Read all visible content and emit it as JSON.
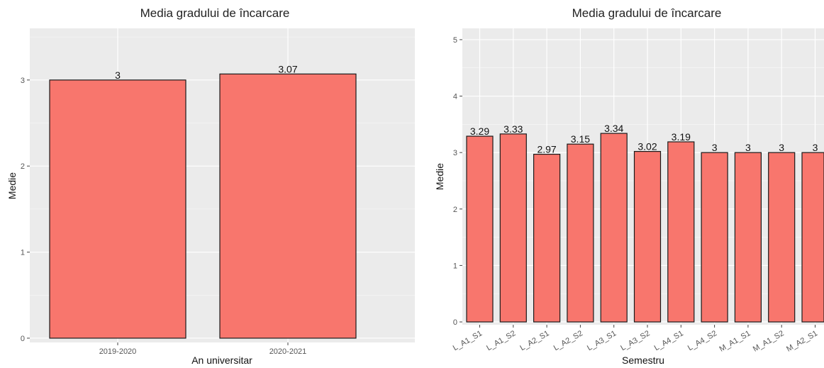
{
  "colors": {
    "panel_bg": "#ebebeb",
    "grid": "#ffffff",
    "bar_fill": "#f8766d",
    "bar_stroke": "#1a1a1a"
  },
  "chart_data": [
    {
      "type": "bar",
      "title": "Media gradului de încarcare",
      "xlabel": "An universitar",
      "ylabel": "Medie",
      "categories": [
        "2019-2020",
        "2020-2021"
      ],
      "values": [
        3,
        3.07
      ],
      "value_labels": [
        "3",
        "3.07"
      ],
      "yticks": [
        0,
        1,
        2,
        3
      ],
      "ylim": [
        -0.05,
        3.6
      ],
      "grid": true,
      "legend": "none"
    },
    {
      "type": "bar",
      "title": "Media gradului de încarcare",
      "xlabel": "Semestru",
      "ylabel": "Medie",
      "categories": [
        "L_A1_S1",
        "L_A1_S2",
        "L_A2_S1",
        "L_A2_S2",
        "L_A3_S1",
        "L_A3_S2",
        "L_A4_S1",
        "L_A4_S2",
        "M_A1_S1",
        "M_A1_S2",
        "M_A2_S1"
      ],
      "values": [
        3.29,
        3.33,
        2.97,
        3.15,
        3.34,
        3.02,
        3.19,
        3,
        3,
        3,
        3
      ],
      "value_labels": [
        "3.29",
        "3.33",
        "2.97",
        "3.15",
        "3.34",
        "3.02",
        "3.19",
        "3",
        "3",
        "3",
        "3"
      ],
      "yticks": [
        0,
        1,
        2,
        3,
        4,
        5
      ],
      "ylim": [
        -0.05,
        5.2
      ],
      "grid": true,
      "legend": "none"
    }
  ]
}
